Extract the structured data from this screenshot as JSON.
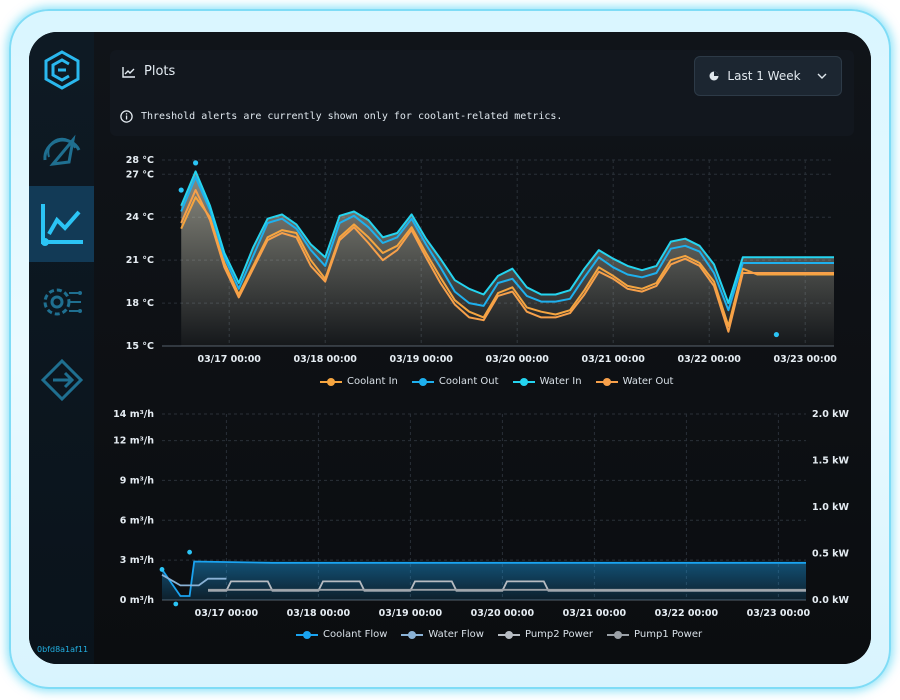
{
  "device_id": "0bfd8a1af11",
  "nav": [
    {
      "name": "logo-icon",
      "icon": "cube-logo-icon"
    },
    {
      "name": "dashboard",
      "icon": "gauge-icon"
    },
    {
      "name": "plots",
      "icon": "chart-icon",
      "active": true
    },
    {
      "name": "settings",
      "icon": "gear-circuit-icon"
    },
    {
      "name": "logout",
      "icon": "exit-icon"
    }
  ],
  "header": {
    "title": "Plots",
    "range_label": "Last 1 Week",
    "alert_text": "Threshold alerts are currently shown only for coolant-related metrics."
  },
  "colors": {
    "coolant_in": "#f5a540",
    "coolant_out": "#1eb0ee",
    "water_in": "#24d4f0",
    "water_out": "#f7a04a",
    "coolant_flow": "#1aa3f0",
    "water_flow": "#8ab2d6",
    "pump2_power": "#b7bcc2",
    "pump1_power": "#9aa0a6"
  },
  "chart_data": [
    {
      "type": "line",
      "x_labels": [
        "03/17 00:00",
        "03/18 00:00",
        "03/19 00:00",
        "03/20 00:00",
        "03/21 00:00",
        "03/22 00:00",
        "03/23 00:00"
      ],
      "y_ticks": [
        "28 °C",
        "27 °C",
        "24 °C",
        "21 °C",
        "18 °C",
        "15 °C"
      ],
      "ylim": [
        15,
        28
      ],
      "x_points": [
        0,
        0.15,
        0.3,
        0.45,
        0.6,
        0.75,
        0.9,
        1.05,
        1.2,
        1.35,
        1.5,
        1.65,
        1.8,
        1.95,
        2.1,
        2.25,
        2.4,
        2.55,
        2.7,
        2.85,
        3.0,
        3.15,
        3.3,
        3.45,
        3.6,
        3.75,
        3.9,
        4.05,
        4.2,
        4.35,
        4.5,
        4.65,
        4.8,
        4.95,
        5.1,
        5.25,
        5.4,
        5.55,
        5.7,
        5.85,
        6.0,
        6.15,
        6.3,
        6.45,
        6.6,
        6.8
      ],
      "x_start": -0.2,
      "series": [
        {
          "name": "Coolant In",
          "values": [
            23.2,
            25.4,
            24.0,
            20.8,
            18.6,
            20.6,
            22.6,
            23.1,
            22.9,
            21.0,
            19.7,
            22.6,
            23.5,
            22.6,
            21.5,
            22.0,
            23.3,
            21.5,
            19.8,
            18.2,
            17.4,
            17.0,
            18.7,
            19.1,
            17.7,
            17.4,
            17.2,
            17.5,
            18.9,
            20.5,
            19.9,
            19.2,
            19.0,
            19.4,
            21.0,
            21.3,
            20.8,
            19.5,
            16.4,
            20.4,
            20.0,
            20.0,
            20.0,
            20.0,
            20.0,
            20.0
          ]
        },
        {
          "name": "Coolant Out",
          "values": [
            24.4,
            26.8,
            24.5,
            21.2,
            19.0,
            21.3,
            23.6,
            23.9,
            23.2,
            21.7,
            20.6,
            23.6,
            24.1,
            23.3,
            22.2,
            22.6,
            23.9,
            22.1,
            20.5,
            18.8,
            18.0,
            17.8,
            19.4,
            19.7,
            18.5,
            18.1,
            18.1,
            18.3,
            19.8,
            21.2,
            20.5,
            20.0,
            19.8,
            20.1,
            21.8,
            22.0,
            21.6,
            20.1,
            17.5,
            20.8,
            20.8,
            20.8,
            20.8,
            20.8,
            20.8,
            20.8
          ]
        },
        {
          "name": "Water In",
          "values": [
            24.8,
            27.2,
            24.8,
            21.5,
            19.4,
            21.9,
            23.9,
            24.2,
            23.5,
            22.1,
            21.2,
            24.1,
            24.4,
            23.8,
            22.6,
            22.9,
            24.2,
            22.5,
            21.1,
            19.6,
            19.0,
            18.6,
            19.9,
            20.4,
            19.1,
            18.6,
            18.6,
            18.9,
            20.4,
            21.7,
            21.1,
            20.6,
            20.3,
            20.6,
            22.3,
            22.5,
            22.0,
            20.7,
            18.0,
            21.2,
            21.2,
            21.2,
            21.2,
            21.2,
            21.2,
            21.2
          ]
        },
        {
          "name": "Water Out",
          "values": [
            23.6,
            25.9,
            23.8,
            20.5,
            18.4,
            20.4,
            22.4,
            22.9,
            22.6,
            20.6,
            19.5,
            22.4,
            23.3,
            22.2,
            21.0,
            21.7,
            23.1,
            21.2,
            19.4,
            17.9,
            17.0,
            16.8,
            18.5,
            18.8,
            17.4,
            17.0,
            17.0,
            17.3,
            18.6,
            20.2,
            19.7,
            19.0,
            18.8,
            19.2,
            20.7,
            21.1,
            20.6,
            19.2,
            16.0,
            20.1,
            20.1,
            20.1,
            20.1,
            20.1,
            20.1,
            20.1
          ]
        }
      ],
      "legend": [
        "Coolant In",
        "Coolant Out",
        "Water In",
        "Water Out"
      ]
    },
    {
      "type": "line",
      "x_labels": [
        "03/17 00:00",
        "03/18 00:00",
        "03/19 00:00",
        "03/20 00:00",
        "03/21 00:00",
        "03/22 00:00",
        "03/23 00:00"
      ],
      "y_ticks_left": [
        "14 m³/h",
        "12 m³/h",
        "9 m³/h",
        "6 m³/h",
        "3 m³/h",
        "0 m³/h"
      ],
      "y_ticks_right": [
        "2.0 kW",
        "1.5 kW",
        "1.0 kW",
        "0.5 kW",
        "0.0 kW"
      ],
      "ylim_left": [
        0,
        14
      ],
      "ylim_right": [
        0,
        2.0
      ],
      "series": [
        {
          "name": "Coolant Flow",
          "axis": "left",
          "points": [
            [
              -0.2,
              2.3
            ],
            [
              0.0,
              0.3
            ],
            [
              0.1,
              0.3
            ],
            [
              0.15,
              2.9
            ],
            [
              1.0,
              2.8
            ],
            [
              2.0,
              2.8
            ],
            [
              3.0,
              2.8
            ],
            [
              4.0,
              2.8
            ],
            [
              5.0,
              2.8
            ],
            [
              6.0,
              2.8
            ],
            [
              6.8,
              2.8
            ]
          ]
        },
        {
          "name": "Water Flow",
          "axis": "left",
          "points": [
            [
              -0.2,
              1.9
            ],
            [
              0.0,
              1.1
            ],
            [
              0.2,
              1.1
            ],
            [
              0.3,
              1.6
            ],
            [
              0.5,
              1.6
            ]
          ]
        },
        {
          "name": "Pump2 Power",
          "axis": "right",
          "points": [
            [
              0.3,
              0.1
            ],
            [
              0.5,
              0.1
            ],
            [
              0.55,
              0.2
            ],
            [
              0.95,
              0.2
            ],
            [
              1.0,
              0.1
            ],
            [
              1.5,
              0.1
            ],
            [
              1.55,
              0.2
            ],
            [
              1.95,
              0.2
            ],
            [
              2.0,
              0.1
            ],
            [
              2.5,
              0.1
            ],
            [
              2.55,
              0.2
            ],
            [
              2.95,
              0.2
            ],
            [
              3.0,
              0.1
            ],
            [
              3.5,
              0.1
            ],
            [
              3.55,
              0.2
            ],
            [
              3.95,
              0.2
            ],
            [
              4.0,
              0.1
            ],
            [
              6.8,
              0.1
            ]
          ]
        },
        {
          "name": "Pump1 Power",
          "axis": "right",
          "points": [
            [
              0.3,
              0.11
            ],
            [
              6.8,
              0.11
            ]
          ]
        }
      ],
      "legend": [
        "Coolant Flow",
        "Water Flow",
        "Pump2 Power",
        "Pump1 Power"
      ]
    }
  ]
}
